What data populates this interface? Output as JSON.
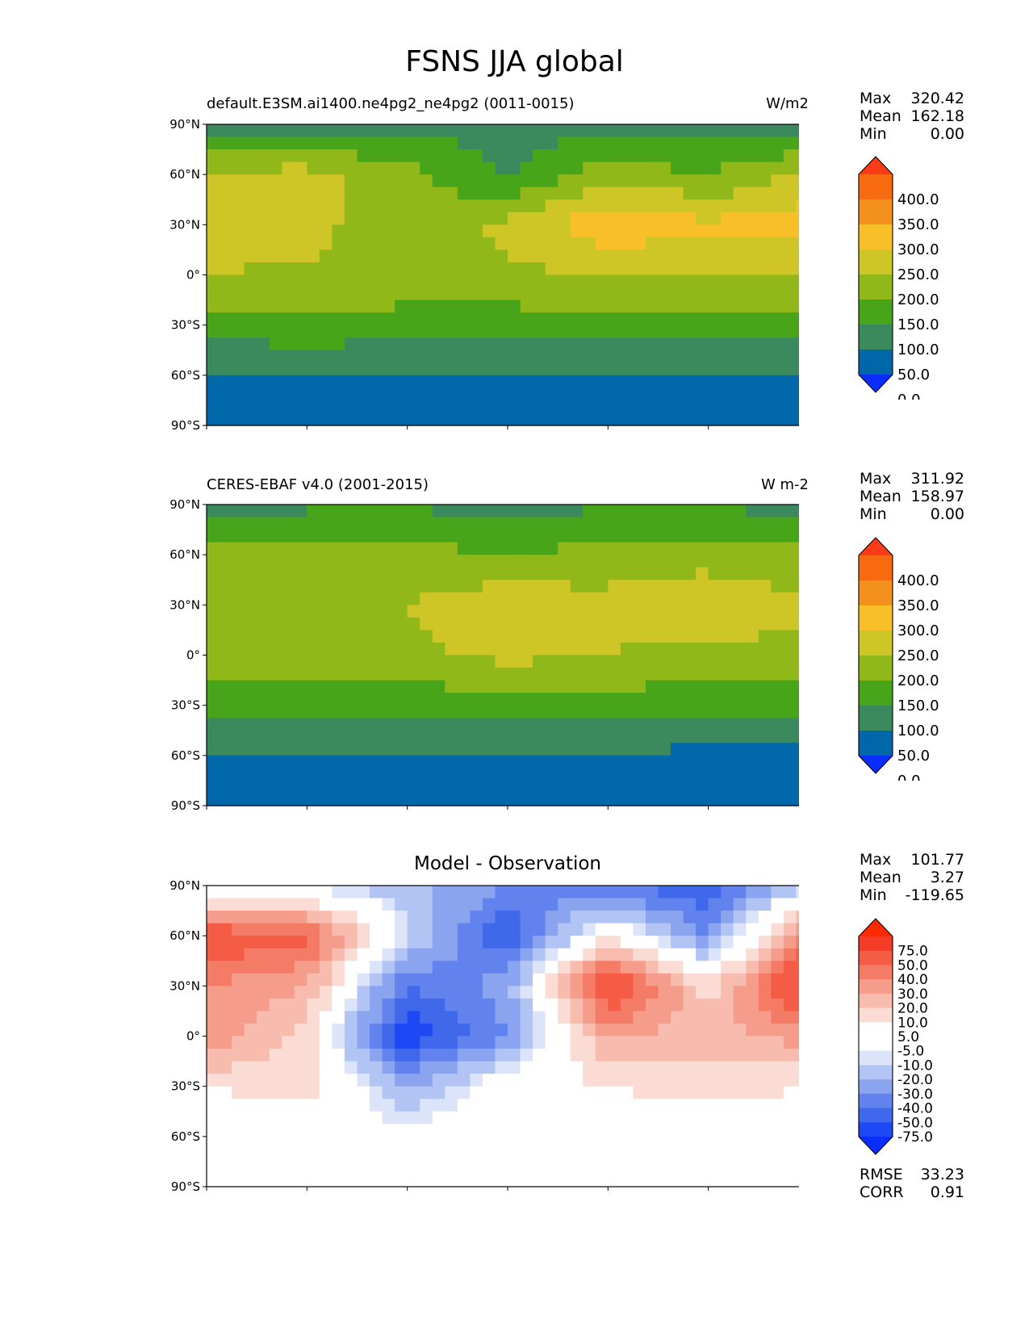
{
  "figure": {
    "title": "FSNS JJA global"
  },
  "axes": {
    "lat_ticks": [
      "90°N",
      "60°N",
      "30°N",
      "0°",
      "30°S",
      "60°S",
      "90°S"
    ],
    "lon_ticks": [
      "0°E",
      "60°E",
      "120°E",
      "180°",
      "120°W",
      "60°W",
      "0°W"
    ],
    "lat_values": [
      90,
      60,
      30,
      0,
      -30,
      -60,
      -90
    ],
    "lon_values": [
      0,
      60,
      120,
      180,
      240,
      300,
      360
    ],
    "xlim": [
      0,
      360
    ],
    "ylim": [
      -90,
      90
    ]
  },
  "panels": [
    {
      "id": "test",
      "title_left": "default.E3SM.ai1400.ne4pg2_ne4pg2 (0011-0015)",
      "title_center": "",
      "units": "W/m2",
      "stats": [
        {
          "label": "Max",
          "value": "320.42"
        },
        {
          "label": "Mean",
          "value": "162.18"
        },
        {
          "label": "Min",
          "value": "0.00"
        }
      ],
      "colorbar": {
        "labels": [
          "400.0",
          "350.0",
          "300.0",
          "250.0",
          "200.0",
          "150.0",
          "100.0",
          "50.0",
          "0.0"
        ],
        "colors": [
          "#0a2eff",
          "#0068a8",
          "#3a8a5e",
          "#48a418",
          "#90b818",
          "#cec526",
          "#f8bf28",
          "#f4901c",
          "#f86a10",
          "#fb3a18"
        ]
      }
    },
    {
      "id": "ref",
      "title_left": "CERES-EBAF v4.0 (2001-2015)",
      "title_center": "",
      "units": "W m-2",
      "stats": [
        {
          "label": "Max",
          "value": "311.92"
        },
        {
          "label": "Mean",
          "value": "158.97"
        },
        {
          "label": "Min",
          "value": "0.00"
        }
      ],
      "colorbar": {
        "labels": [
          "400.0",
          "350.0",
          "300.0",
          "250.0",
          "200.0",
          "150.0",
          "100.0",
          "50.0",
          "0.0"
        ],
        "colors": [
          "#0a2eff",
          "#0068a8",
          "#3a8a5e",
          "#48a418",
          "#90b818",
          "#cec526",
          "#f8bf28",
          "#f4901c",
          "#f86a10",
          "#fb3a18"
        ]
      }
    },
    {
      "id": "diff",
      "title_left": "",
      "title_center": "Model - Observation",
      "units": "",
      "stats": [
        {
          "label": "Max",
          "value": "101.77"
        },
        {
          "label": "Mean",
          "value": "3.27"
        },
        {
          "label": "Min",
          "value": "-119.65"
        }
      ],
      "stats_bottom": [
        {
          "label": "RMSE",
          "value": "33.23"
        },
        {
          "label": "CORR",
          "value": "0.91"
        }
      ],
      "colorbar": {
        "labels": [
          "75.0",
          "50.0",
          "40.0",
          "30.0",
          "20.0",
          "10.0",
          "5.0",
          "-5.0",
          "-10.0",
          "-20.0",
          "-30.0",
          "-40.0",
          "-50.0",
          "-75.0"
        ],
        "colors": [
          "#0a2eff",
          "#1e48f4",
          "#4068ea",
          "#6282ee",
          "#8aa4f0",
          "#b2c4f4",
          "#dce4fa",
          "#ffffff",
          "#ffffff",
          "#fbdcd4",
          "#f8bcae",
          "#f69c8a",
          "#f47c66",
          "#f45c46",
          "#f43c26",
          "#ff2a00"
        ]
      }
    }
  ],
  "chart_data": [
    {
      "type": "heatmap",
      "panel": "test",
      "variable": "FSNS",
      "units": "W/m2",
      "levels": [
        0,
        50,
        100,
        150,
        200,
        250,
        300,
        350,
        400
      ],
      "lat": [
        -90,
        -60,
        -30,
        0,
        30,
        60,
        90
      ],
      "lon": [
        0,
        60,
        120,
        180,
        240,
        300,
        360
      ],
      "values": [
        [
          0,
          0,
          0,
          0,
          0,
          0,
          0
        ],
        [
          40,
          40,
          40,
          40,
          40,
          40,
          40
        ],
        [
          130,
          140,
          130,
          125,
          130,
          130,
          130
        ],
        [
          200,
          190,
          180,
          190,
          200,
          205,
          200
        ],
        [
          230,
          225,
          150,
          215,
          290,
          260,
          280
        ],
        [
          210,
          220,
          170,
          90,
          180,
          150,
          210
        ],
        [
          80,
          80,
          80,
          80,
          80,
          80,
          80
        ]
      ],
      "max": 320.42,
      "mean": 162.18,
      "min": 0.0
    },
    {
      "type": "heatmap",
      "panel": "ref",
      "variable": "FSNS",
      "units": "W m-2",
      "levels": [
        0,
        50,
        100,
        150,
        200,
        250,
        300,
        350,
        400
      ],
      "lat": [
        -90,
        -60,
        -30,
        0,
        30,
        60,
        90
      ],
      "lon": [
        0,
        60,
        120,
        180,
        240,
        300,
        360
      ],
      "values": [
        [
          0,
          0,
          0,
          0,
          0,
          0,
          0
        ],
        [
          40,
          40,
          40,
          40,
          40,
          40,
          40
        ],
        [
          120,
          125,
          120,
          125,
          130,
          115,
          120
        ],
        [
          185,
          180,
          185,
          215,
          200,
          180,
          190
        ],
        [
          195,
          195,
          200,
          240,
          210,
          245,
          205
        ],
        [
          160,
          170,
          180,
          140,
          180,
          175,
          160
        ],
        [
          90,
          90,
          90,
          90,
          90,
          90,
          90
        ]
      ],
      "max": 311.92,
      "mean": 158.97,
      "min": 0.0
    },
    {
      "type": "heatmap",
      "panel": "diff",
      "title": "Model - Observation",
      "levels": [
        -75,
        -50,
        -40,
        -30,
        -20,
        -10,
        -5,
        5,
        10,
        20,
        30,
        40,
        50,
        75
      ],
      "lat": [
        -90,
        -60,
        -30,
        0,
        30,
        60,
        90
      ],
      "lon": [
        0,
        60,
        120,
        180,
        240,
        300,
        360
      ],
      "values": [
        [
          0,
          0,
          0,
          0,
          0,
          0,
          0
        ],
        [
          0,
          0,
          0,
          0,
          0,
          0,
          0
        ],
        [
          10,
          15,
          -20,
          5,
          10,
          15,
          10
        ],
        [
          40,
          15,
          -60,
          -30,
          30,
          25,
          35
        ],
        [
          40,
          30,
          -40,
          -25,
          70,
          15,
          75
        ],
        [
          60,
          55,
          -10,
          -50,
          10,
          -30,
          50
        ],
        [
          -10,
          -10,
          -15,
          -30,
          -40,
          -50,
          -10
        ]
      ],
      "max": 101.77,
      "mean": 3.27,
      "min": -119.65,
      "rmse": 33.23,
      "corr": 0.91
    }
  ]
}
